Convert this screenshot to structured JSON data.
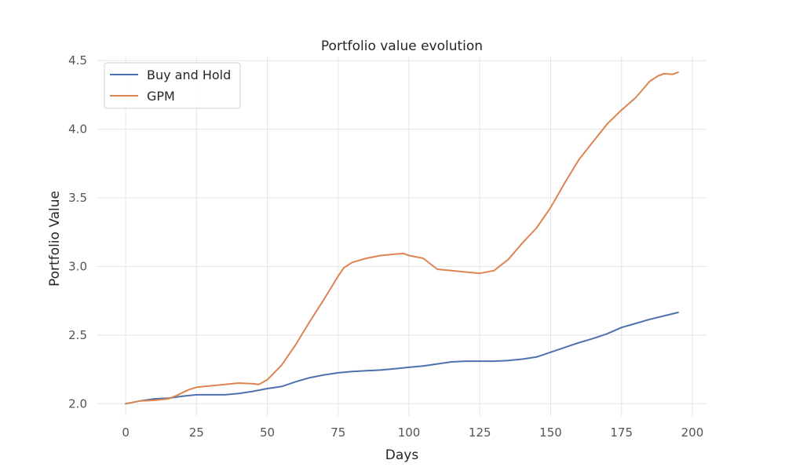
{
  "chart_data": {
    "type": "line",
    "title": "Portfolio value evolution",
    "xlabel": "Days",
    "ylabel": "Portfolio Value",
    "xlim": [
      -10,
      205
    ],
    "ylim": [
      1.91,
      4.53
    ],
    "xticks": [
      0,
      25,
      50,
      75,
      100,
      125,
      150,
      175,
      200
    ],
    "yticks": [
      2.0,
      2.5,
      3.0,
      3.5,
      4.0,
      4.5
    ],
    "xtick_labels": [
      "0",
      "25",
      "50",
      "75",
      "100",
      "125",
      "150",
      "175",
      "200"
    ],
    "ytick_labels": [
      "2.0",
      "2.5",
      "3.0",
      "3.5",
      "4.0",
      "4.5"
    ],
    "grid": true,
    "legend_position": "top-left",
    "series": [
      {
        "name": "Buy and Hold",
        "color": "#4c72b0",
        "x": [
          0,
          5,
          10,
          15,
          20,
          25,
          30,
          35,
          40,
          45,
          50,
          55,
          60,
          65,
          70,
          75,
          80,
          85,
          90,
          95,
          100,
          105,
          110,
          115,
          120,
          125,
          130,
          135,
          140,
          145,
          150,
          155,
          160,
          165,
          170,
          175,
          180,
          185,
          190,
          195
        ],
        "values": [
          2.0,
          2.02,
          2.035,
          2.04,
          2.055,
          2.065,
          2.065,
          2.065,
          2.075,
          2.09,
          2.11,
          2.125,
          2.16,
          2.19,
          2.21,
          2.225,
          2.235,
          2.24,
          2.245,
          2.255,
          2.265,
          2.275,
          2.29,
          2.305,
          2.31,
          2.31,
          2.31,
          2.315,
          2.325,
          2.34,
          2.375,
          2.41,
          2.445,
          2.475,
          2.51,
          2.555,
          2.585,
          2.615,
          2.64,
          2.665
        ]
      },
      {
        "name": "GPM",
        "color": "#dd8452",
        "x": [
          0,
          5,
          10,
          15,
          18,
          22,
          25,
          30,
          35,
          40,
          45,
          47,
          50,
          55,
          60,
          65,
          70,
          75,
          77,
          80,
          85,
          90,
          95,
          98,
          100,
          105,
          110,
          115,
          120,
          125,
          130,
          135,
          140,
          145,
          150,
          155,
          160,
          165,
          170,
          175,
          180,
          185,
          188,
          190,
          193,
          195
        ],
        "values": [
          2.0,
          2.02,
          2.025,
          2.035,
          2.06,
          2.1,
          2.12,
          2.13,
          2.14,
          2.15,
          2.145,
          2.14,
          2.175,
          2.28,
          2.43,
          2.6,
          2.76,
          2.93,
          2.99,
          3.03,
          3.06,
          3.08,
          3.09,
          3.095,
          3.08,
          3.06,
          2.98,
          2.97,
          2.96,
          2.95,
          2.97,
          3.05,
          3.17,
          3.28,
          3.43,
          3.61,
          3.78,
          3.91,
          4.04,
          4.14,
          4.23,
          4.35,
          4.39,
          4.405,
          4.4,
          4.415
        ]
      }
    ]
  }
}
